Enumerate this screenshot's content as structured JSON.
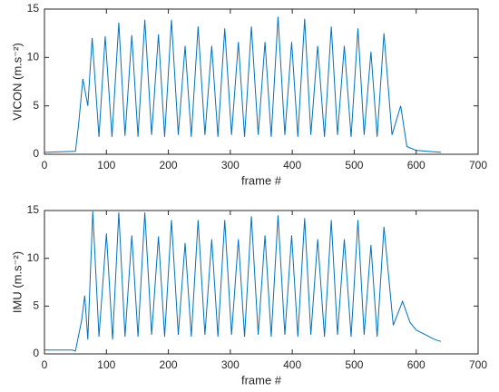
{
  "chart_data": [
    {
      "type": "line",
      "xlabel": "frame #",
      "ylabel": "VICON (m.s⁻²)",
      "x": [
        0,
        50,
        55,
        62,
        70,
        77,
        88,
        98,
        109,
        120,
        130,
        141,
        151,
        162,
        173,
        184,
        194,
        205,
        216,
        227,
        237,
        248,
        259,
        270,
        280,
        291,
        302,
        313,
        323,
        334,
        345,
        356,
        366,
        377,
        388,
        399,
        409,
        420,
        430,
        441,
        452,
        463,
        473,
        484,
        495,
        506,
        516,
        527,
        537,
        548,
        561,
        575,
        585,
        600,
        640
      ],
      "series": [
        {
          "color": "#0072bd",
          "values": [
            0.2,
            0.3,
            3,
            7.8,
            5,
            12,
            1.8,
            12.2,
            1.8,
            13.6,
            1.9,
            12.3,
            1.8,
            13.9,
            2,
            12.4,
            1.8,
            13.9,
            2,
            11.2,
            1.8,
            13.2,
            2,
            11.2,
            1.8,
            13.0,
            2,
            11.6,
            1.8,
            13.2,
            2,
            11.6,
            1.8,
            14.2,
            2,
            11.6,
            1.8,
            14.0,
            2,
            11.2,
            1.8,
            13.2,
            2,
            11.2,
            1.8,
            13.0,
            2,
            10.6,
            1.8,
            12.5,
            2,
            5,
            0.8,
            0.4,
            0.2
          ]
        }
      ],
      "xlim": [
        0,
        700
      ],
      "xticks": [
        0,
        100,
        200,
        300,
        400,
        500,
        600,
        700
      ],
      "ylim": [
        0,
        15
      ],
      "yticks": [
        0,
        5,
        10,
        15
      ]
    },
    {
      "type": "line",
      "xlabel": "frame #",
      "ylabel": "IMU  (m.s⁻²)",
      "x": [
        0,
        45,
        50,
        60,
        65,
        70,
        78,
        88,
        100,
        110,
        120,
        130,
        141,
        151,
        162,
        173,
        184,
        194,
        205,
        216,
        227,
        237,
        248,
        259,
        270,
        280,
        291,
        302,
        313,
        323,
        334,
        345,
        356,
        366,
        377,
        388,
        399,
        409,
        420,
        430,
        441,
        452,
        463,
        473,
        484,
        495,
        506,
        516,
        527,
        537,
        548,
        563,
        578,
        590,
        600,
        615,
        630,
        640
      ],
      "series": [
        {
          "color": "#0072bd",
          "values": [
            0.4,
            0.4,
            0.3,
            3.5,
            6.1,
            1.5,
            14.9,
            1.8,
            12.6,
            1.5,
            14.8,
            1.8,
            12.4,
            1.8,
            14.8,
            2,
            12.3,
            1.8,
            14.0,
            2,
            11.6,
            1.8,
            14.0,
            2,
            12.0,
            1.8,
            14.0,
            2,
            12.0,
            1.8,
            14.4,
            2,
            12.4,
            1.8,
            14.5,
            2,
            12.4,
            1.8,
            14.2,
            2,
            12.0,
            1.8,
            14.0,
            2,
            12.0,
            1.8,
            14.0,
            2,
            11.4,
            1.8,
            13.3,
            3,
            5.5,
            3.3,
            2.5,
            2.0,
            1.5,
            1.3
          ]
        }
      ],
      "xlim": [
        0,
        700
      ],
      "xticks": [
        0,
        100,
        200,
        300,
        400,
        500,
        600,
        700
      ],
      "ylim": [
        0,
        15
      ],
      "yticks": [
        0,
        5,
        10,
        15
      ]
    }
  ]
}
